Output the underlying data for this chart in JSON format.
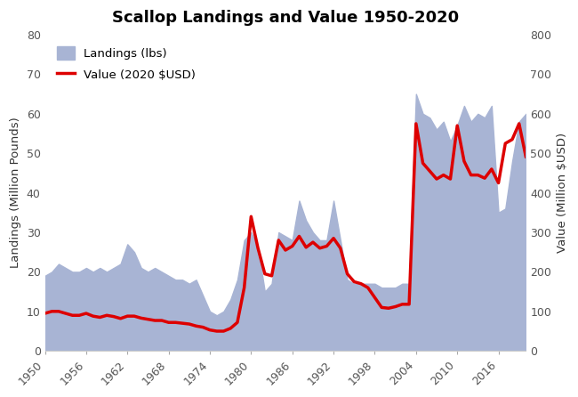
{
  "title": "Scallop Landings and Value 1950-2020",
  "ylabel_left": "Landings (Million Pounds)",
  "ylabel_right": "Value (Million $USD)",
  "xlim": [
    1950,
    2020
  ],
  "ylim_left": [
    0,
    80
  ],
  "ylim_right": [
    0,
    800
  ],
  "xticks": [
    1950,
    1956,
    1962,
    1968,
    1974,
    1980,
    1986,
    1992,
    1998,
    2004,
    2010,
    2016
  ],
  "yticks_left": [
    0,
    10,
    20,
    30,
    40,
    50,
    60,
    70,
    80
  ],
  "yticks_right": [
    0,
    100,
    200,
    300,
    400,
    500,
    600,
    700,
    800
  ],
  "area_color": "#a8b4d4",
  "area_alpha": 1.0,
  "line_color": "#dd0000",
  "line_width": 2.5,
  "background_color": "#ffffff",
  "landings_years": [
    1950,
    1951,
    1952,
    1953,
    1954,
    1955,
    1956,
    1957,
    1958,
    1959,
    1960,
    1961,
    1962,
    1963,
    1964,
    1965,
    1966,
    1967,
    1968,
    1969,
    1970,
    1971,
    1972,
    1973,
    1974,
    1975,
    1976,
    1977,
    1978,
    1979,
    1980,
    1981,
    1982,
    1983,
    1984,
    1985,
    1986,
    1987,
    1988,
    1989,
    1990,
    1991,
    1992,
    1993,
    1994,
    1995,
    1996,
    1997,
    1998,
    1999,
    2000,
    2001,
    2002,
    2003,
    2004,
    2005,
    2006,
    2007,
    2008,
    2009,
    2010,
    2011,
    2012,
    2013,
    2014,
    2015,
    2016,
    2017,
    2018,
    2019,
    2020
  ],
  "landings_values": [
    19,
    20,
    22,
    21,
    20,
    20,
    21,
    20,
    21,
    20,
    21,
    22,
    27,
    25,
    21,
    20,
    21,
    20,
    19,
    18,
    18,
    17,
    18,
    14,
    10,
    9,
    10,
    13,
    18,
    28,
    30,
    26,
    15,
    17,
    30,
    29,
    28,
    38,
    33,
    30,
    28,
    28,
    38,
    28,
    18,
    17,
    17,
    17,
    17,
    16,
    16,
    16,
    17,
    17,
    65,
    60,
    59,
    56,
    58,
    53,
    57,
    62,
    58,
    60,
    59,
    62,
    35,
    36,
    48,
    58,
    60
  ],
  "value_years": [
    1950,
    1951,
    1952,
    1953,
    1954,
    1955,
    1956,
    1957,
    1958,
    1959,
    1960,
    1961,
    1962,
    1963,
    1964,
    1965,
    1966,
    1967,
    1968,
    1969,
    1970,
    1971,
    1972,
    1973,
    1974,
    1975,
    1976,
    1977,
    1978,
    1979,
    1980,
    1981,
    1982,
    1983,
    1984,
    1985,
    1986,
    1987,
    1988,
    1989,
    1990,
    1991,
    1992,
    1993,
    1994,
    1995,
    1996,
    1997,
    1998,
    1999,
    2000,
    2001,
    2002,
    2003,
    2004,
    2005,
    2006,
    2007,
    2008,
    2009,
    2010,
    2011,
    2012,
    2013,
    2014,
    2015,
    2016,
    2017,
    2018,
    2019,
    2020
  ],
  "value_values": [
    95,
    100,
    100,
    95,
    90,
    90,
    95,
    88,
    85,
    90,
    87,
    82,
    88,
    88,
    83,
    80,
    77,
    77,
    72,
    72,
    70,
    68,
    63,
    60,
    53,
    50,
    50,
    57,
    72,
    160,
    340,
    260,
    195,
    190,
    280,
    255,
    265,
    290,
    262,
    275,
    260,
    265,
    285,
    260,
    195,
    175,
    170,
    160,
    135,
    110,
    108,
    112,
    118,
    118,
    575,
    475,
    455,
    435,
    445,
    435,
    570,
    480,
    445,
    445,
    437,
    460,
    425,
    525,
    535,
    575,
    490
  ],
  "legend_area_label": "Landings (lbs)",
  "legend_line_label": "Value (2020 $USD)"
}
